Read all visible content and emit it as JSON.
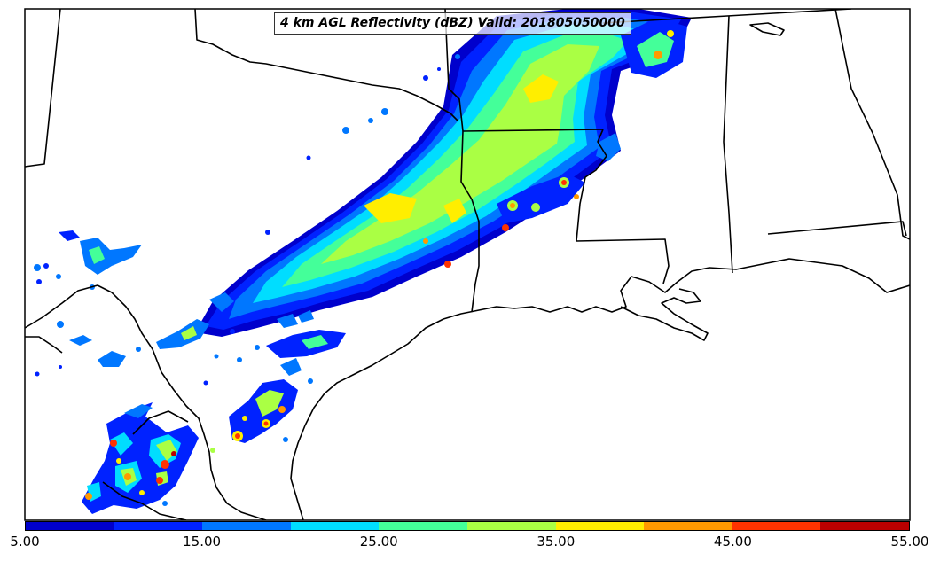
{
  "title": "4 km AGL Reflectivity (dBZ) Valid: 201805050000",
  "colorbar": {
    "colors": [
      "#0000cc",
      "#0022ff",
      "#0077ff",
      "#00ddff",
      "#44ff99",
      "#aaff44",
      "#ffee00",
      "#ff9900",
      "#ff3300",
      "#bb0000"
    ],
    "labels": [
      "5.00",
      "15.00",
      "25.00",
      "35.00",
      "45.00",
      "55.00"
    ]
  },
  "styles": {
    "border_color": "#000000",
    "land_color": "#ffffff"
  }
}
